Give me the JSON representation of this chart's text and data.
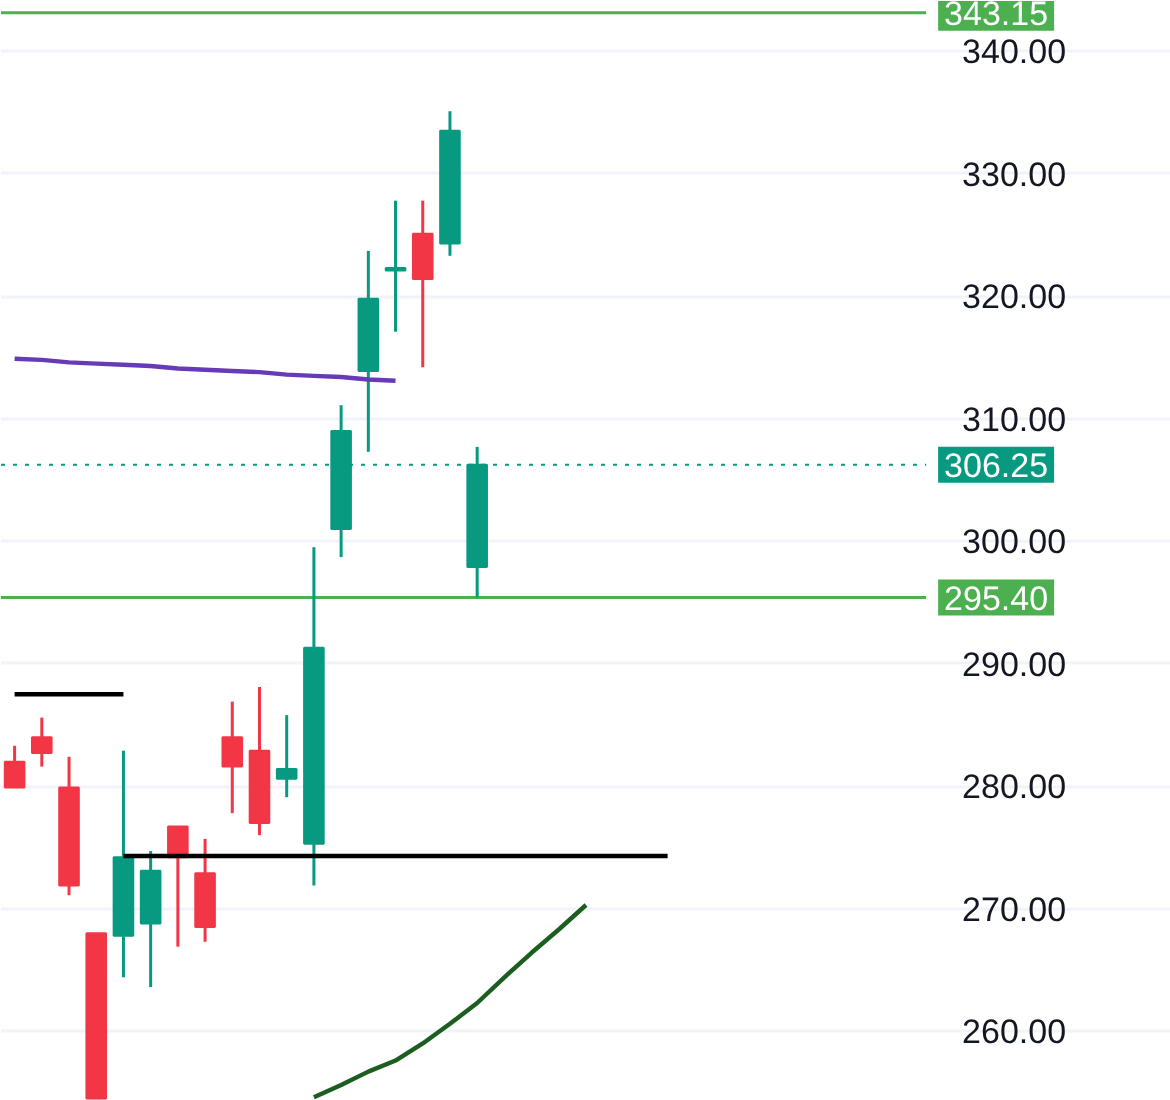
{
  "chart_data": {
    "type": "candlestick",
    "categories": [
      null,
      null,
      null,
      null,
      null,
      null,
      null,
      null,
      null,
      null,
      null,
      null,
      null,
      null,
      null,
      null,
      null,
      null,
      null,
      null,
      null,
      null,
      null,
      null,
      null,
      null,
      null,
      null,
      null,
      null,
      null,
      null,
      null,
      null,
      null,
      null,
      null,
      null,
      null,
      null,
      null,
      null,
      null
    ],
    "ohlc": [
      [
        282.0,
        283.3,
        279.9,
        279.9
      ],
      [
        284.0,
        285.6,
        281.6,
        282.7
      ],
      [
        279.9,
        282.4,
        271.1,
        271.9
      ],
      [
        268.0,
        268.0,
        254.5,
        254.5
      ],
      [
        267.8,
        282.9,
        264.4,
        274.2
      ],
      [
        268.8,
        274.7,
        263.6,
        273.1
      ],
      [
        276.7,
        276.7,
        266.9,
        274.2
      ],
      [
        272.9,
        275.7,
        267.3,
        268.5
      ],
      [
        284.0,
        286.9,
        277.8,
        281.6
      ],
      [
        282.9,
        288.1,
        276.0,
        277.0
      ],
      [
        280.6,
        285.8,
        279.1,
        281.4
      ],
      [
        275.3,
        299.5,
        271.9,
        291.3
      ],
      [
        301.0,
        311.1,
        298.7,
        309.0
      ],
      [
        313.9,
        323.7,
        307.3,
        319.8
      ],
      [
        322.1,
        327.8,
        317.1,
        322.3
      ],
      [
        325.1,
        327.8,
        314.2,
        321.4
      ],
      [
        324.3,
        335.1,
        323.3,
        333.5
      ],
      [
        297.9,
        307.7,
        295.4,
        306.25
      ],
      null,
      null,
      null,
      null,
      null,
      null,
      null,
      null,
      null,
      null,
      null,
      null,
      null,
      null,
      null,
      null,
      null,
      null,
      null,
      null,
      null,
      null,
      null,
      null,
      null
    ],
    "series": [
      {
        "type": "line",
        "color": "#000000",
        "values": [
          287.5,
          287.5,
          287.5,
          287.5,
          287.5,
          null,
          null,
          null,
          null,
          null,
          null,
          null,
          null,
          null,
          null,
          null,
          null,
          null,
          null,
          null,
          null,
          null,
          null,
          null,
          null,
          null,
          null,
          null,
          null,
          null,
          null,
          null,
          null,
          null,
          null,
          null,
          null,
          null,
          null,
          null,
          null,
          null,
          null
        ]
      },
      {
        "type": "line",
        "color": "#000000",
        "values": [
          null,
          null,
          null,
          null,
          274.3,
          274.3,
          274.3,
          274.3,
          274.3,
          274.3,
          274.3,
          274.3,
          274.3,
          274.3,
          274.3,
          274.3,
          274.3,
          274.3,
          274.3,
          274.3,
          274.3,
          274.3,
          274.3,
          274.3,
          274.3,
          null,
          null,
          null,
          null,
          null,
          null,
          null,
          null,
          null,
          null,
          null,
          null,
          null,
          null,
          null,
          null,
          null,
          null
        ]
      },
      {
        "type": "line",
        "color": "#673ab7",
        "values": [
          314.9,
          314.8,
          314.6,
          314.5,
          314.4,
          314.3,
          314.1,
          314.0,
          313.9,
          313.8,
          313.6,
          313.5,
          313.4,
          313.2,
          313.1,
          null,
          null,
          null,
          null,
          null,
          null,
          null,
          null,
          null,
          null,
          null,
          null,
          null,
          null,
          null,
          null,
          null,
          null,
          null,
          null,
          null,
          null,
          null,
          null,
          null,
          null,
          null,
          null
        ]
      },
      {
        "type": "line",
        "color": "#1b5e20",
        "values": [
          null,
          null,
          null,
          null,
          null,
          null,
          null,
          null,
          null,
          null,
          null,
          254.6,
          255.6,
          256.7,
          257.6,
          259.0,
          260.6,
          262.3,
          264.4,
          266.4,
          268.3,
          270.3,
          null,
          null,
          null,
          null,
          null,
          null,
          null,
          null,
          null,
          null,
          null,
          null,
          null,
          null,
          null,
          null,
          null,
          null,
          null,
          null,
          null
        ]
      }
    ],
    "ylim": [
      254.3,
      344.1
    ],
    "yticks": [
      {
        "value": 260,
        "label": "260.00"
      },
      {
        "value": 270,
        "label": "270.00"
      },
      {
        "value": 280,
        "label": "280.00"
      },
      {
        "value": 290,
        "label": "290.00"
      },
      {
        "value": 300,
        "label": "300.00"
      },
      {
        "value": 310,
        "label": "310.00"
      },
      {
        "value": 320,
        "label": "320.00"
      },
      {
        "value": 330,
        "label": "330.00"
      },
      {
        "value": 340,
        "label": "340.00"
      }
    ],
    "ref_lines": [
      {
        "axis": "y",
        "value": 343.15,
        "label": "343.15",
        "color": "#4caf50"
      },
      {
        "axis": "y",
        "value": 306.25,
        "label": "306.25",
        "color": "#089981",
        "line_style": "dotted"
      },
      {
        "axis": "y",
        "value": 295.4,
        "label": "295.40",
        "color": "#4caf50"
      }
    ],
    "tick_labels": "y",
    "grid": "y"
  }
}
